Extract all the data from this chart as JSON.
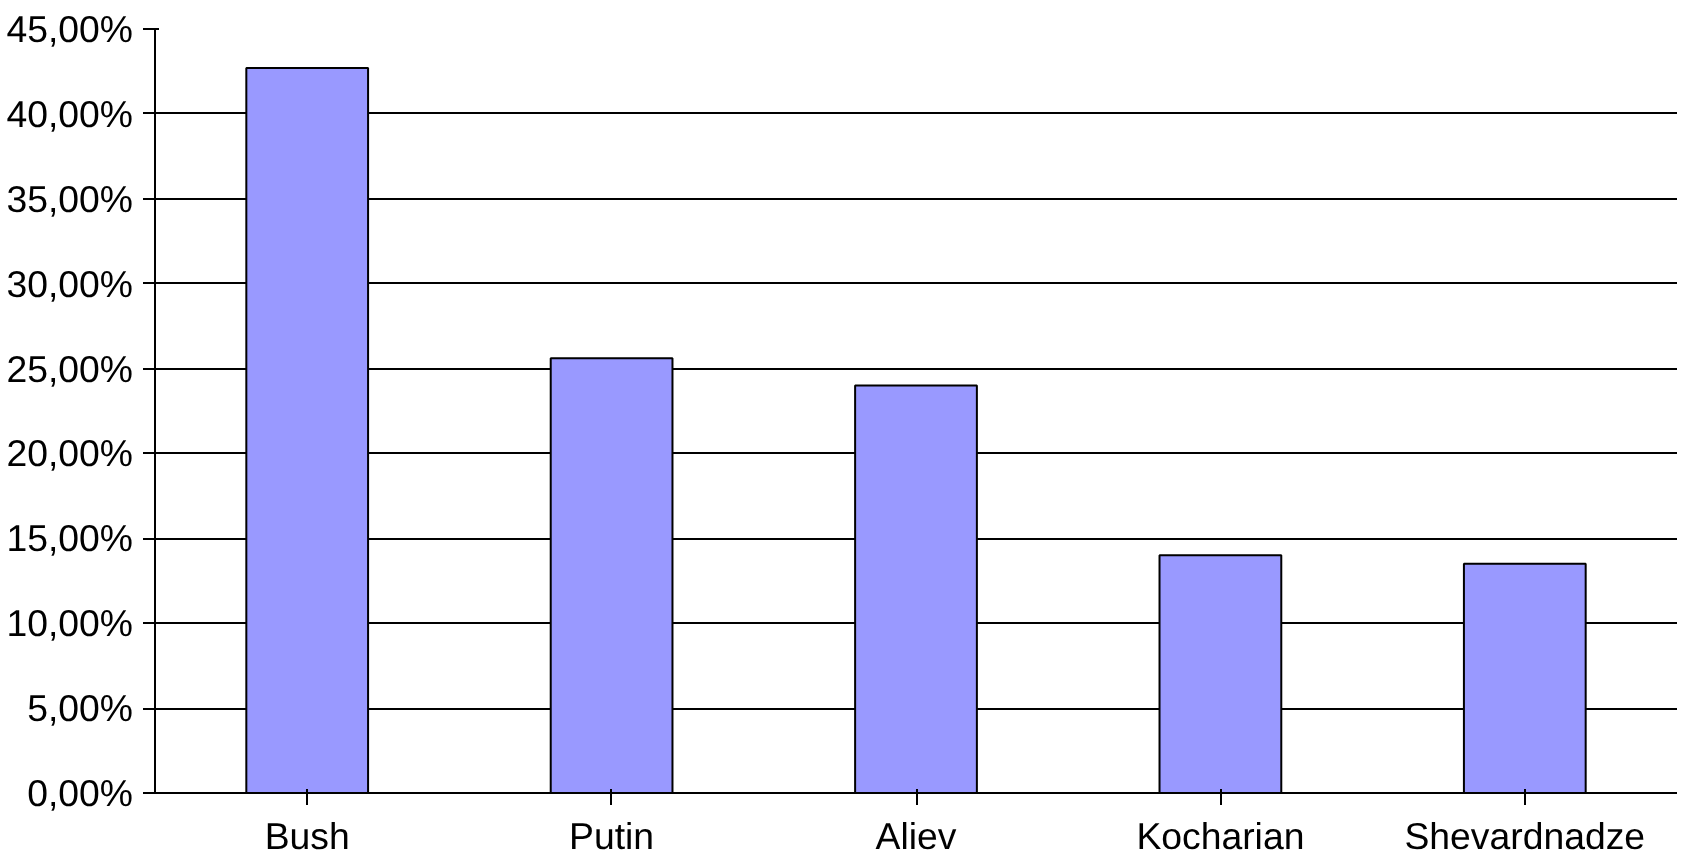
{
  "chart_data": {
    "type": "bar",
    "categories": [
      "Bush",
      "Putin",
      "Aliev",
      "Kocharian",
      "Shevardnadze"
    ],
    "values": [
      42.7,
      25.6,
      24.0,
      14.0,
      13.5
    ],
    "color": "#9999ff",
    "ylim": [
      0,
      45
    ],
    "yticks": [
      {
        "value": 0,
        "label": "0,00%"
      },
      {
        "value": 5,
        "label": "5,00%"
      },
      {
        "value": 10,
        "label": "10,00%"
      },
      {
        "value": 15,
        "label": "15,00%"
      },
      {
        "value": 20,
        "label": "20,00%"
      },
      {
        "value": 25,
        "label": "25,00%"
      },
      {
        "value": 30,
        "label": "30,00%"
      },
      {
        "value": 35,
        "label": "35,00%"
      },
      {
        "value": 40,
        "label": "40,00%"
      },
      {
        "value": 45,
        "label": "45,00%"
      }
    ],
    "grid": "y"
  }
}
